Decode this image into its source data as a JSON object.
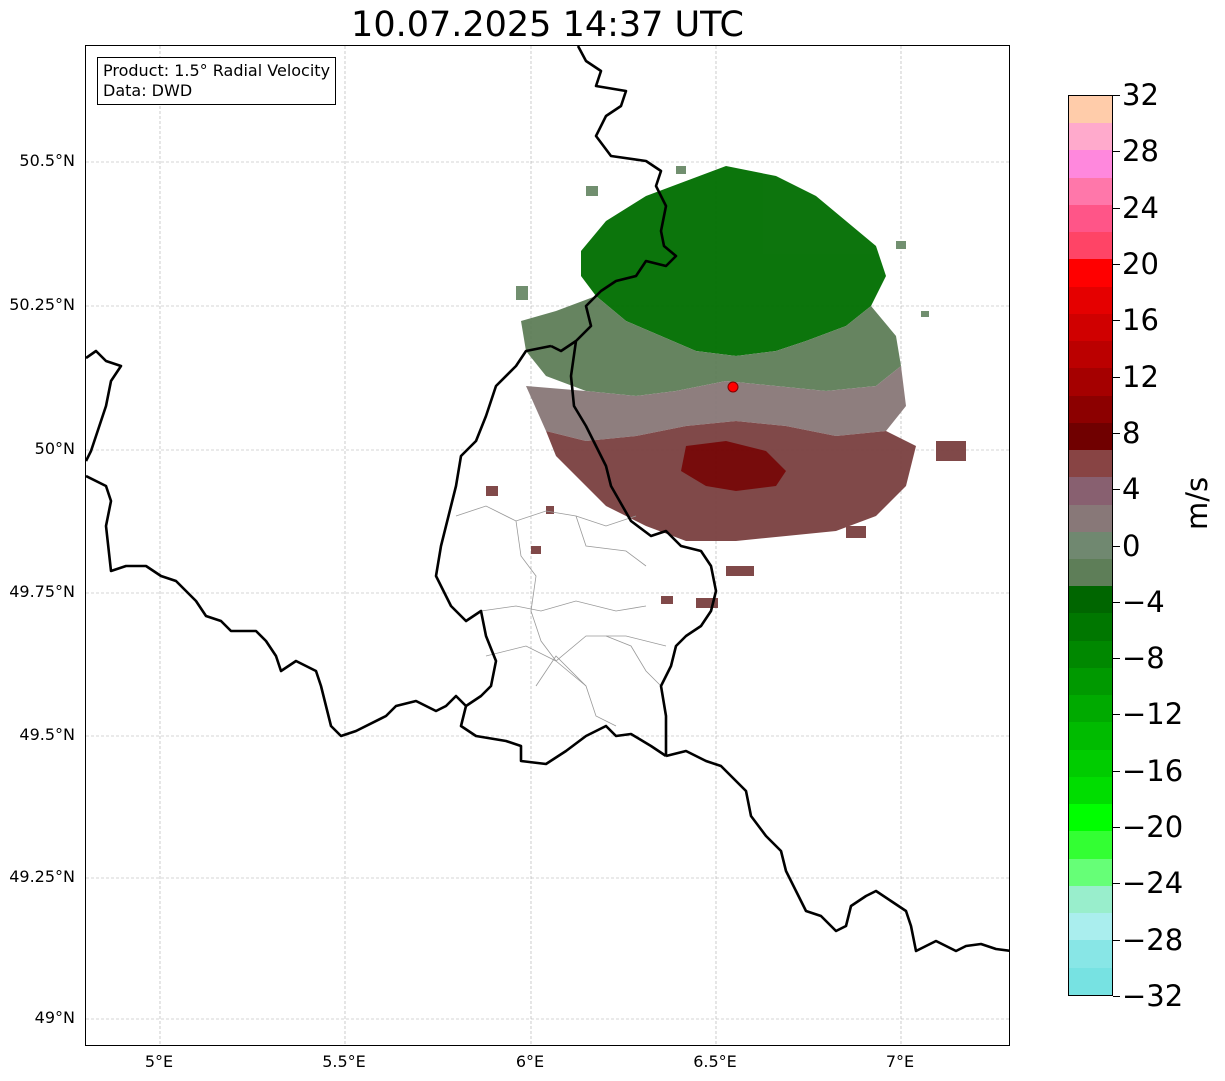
{
  "title": "10.07.2025 14:37 UTC",
  "info_box": {
    "line1": "Product: 1.5° Radial Velocity",
    "line2": "Data: DWD"
  },
  "lat_labels": [
    "50.5°N",
    "50.25°N",
    "50°N",
    "49.75°N",
    "49.5°N",
    "49.25°N",
    "49°N"
  ],
  "lon_labels": [
    "5°E",
    "5.5°E",
    "6°E",
    "6.5°E",
    "7°E"
  ],
  "colorbar": {
    "unit": "m/s",
    "tick_labels": [
      "32",
      "28",
      "24",
      "20",
      "16",
      "12",
      "8",
      "4",
      "0",
      "−4",
      "−8",
      "−12",
      "−16",
      "−20",
      "−24",
      "−28",
      "−32"
    ],
    "colors_top_to_bottom": [
      "#ffccaa",
      "#ffaacc",
      "#ff88dd",
      "#ff77aa",
      "#ff5588",
      "#ff4466",
      "#ff0000",
      "#e50000",
      "#d00000",
      "#bb0000",
      "#a50000",
      "#8c0000",
      "#700000",
      "#884444",
      "#886070",
      "#887878",
      "#708870",
      "#5e7e58",
      "#006600",
      "#007700",
      "#008800",
      "#009900",
      "#00aa00",
      "#00bb00",
      "#00cc00",
      "#00dd00",
      "#00ff00",
      "#33ff33",
      "#66ff77",
      "#99eecc",
      "#aaeeee",
      "#88e6e6",
      "#77e2e2"
    ]
  },
  "radar_site": {
    "color": "#ff0000"
  },
  "map_colors": {
    "border": "#000000",
    "district": "#999999",
    "grid": "#aaaaaa"
  }
}
